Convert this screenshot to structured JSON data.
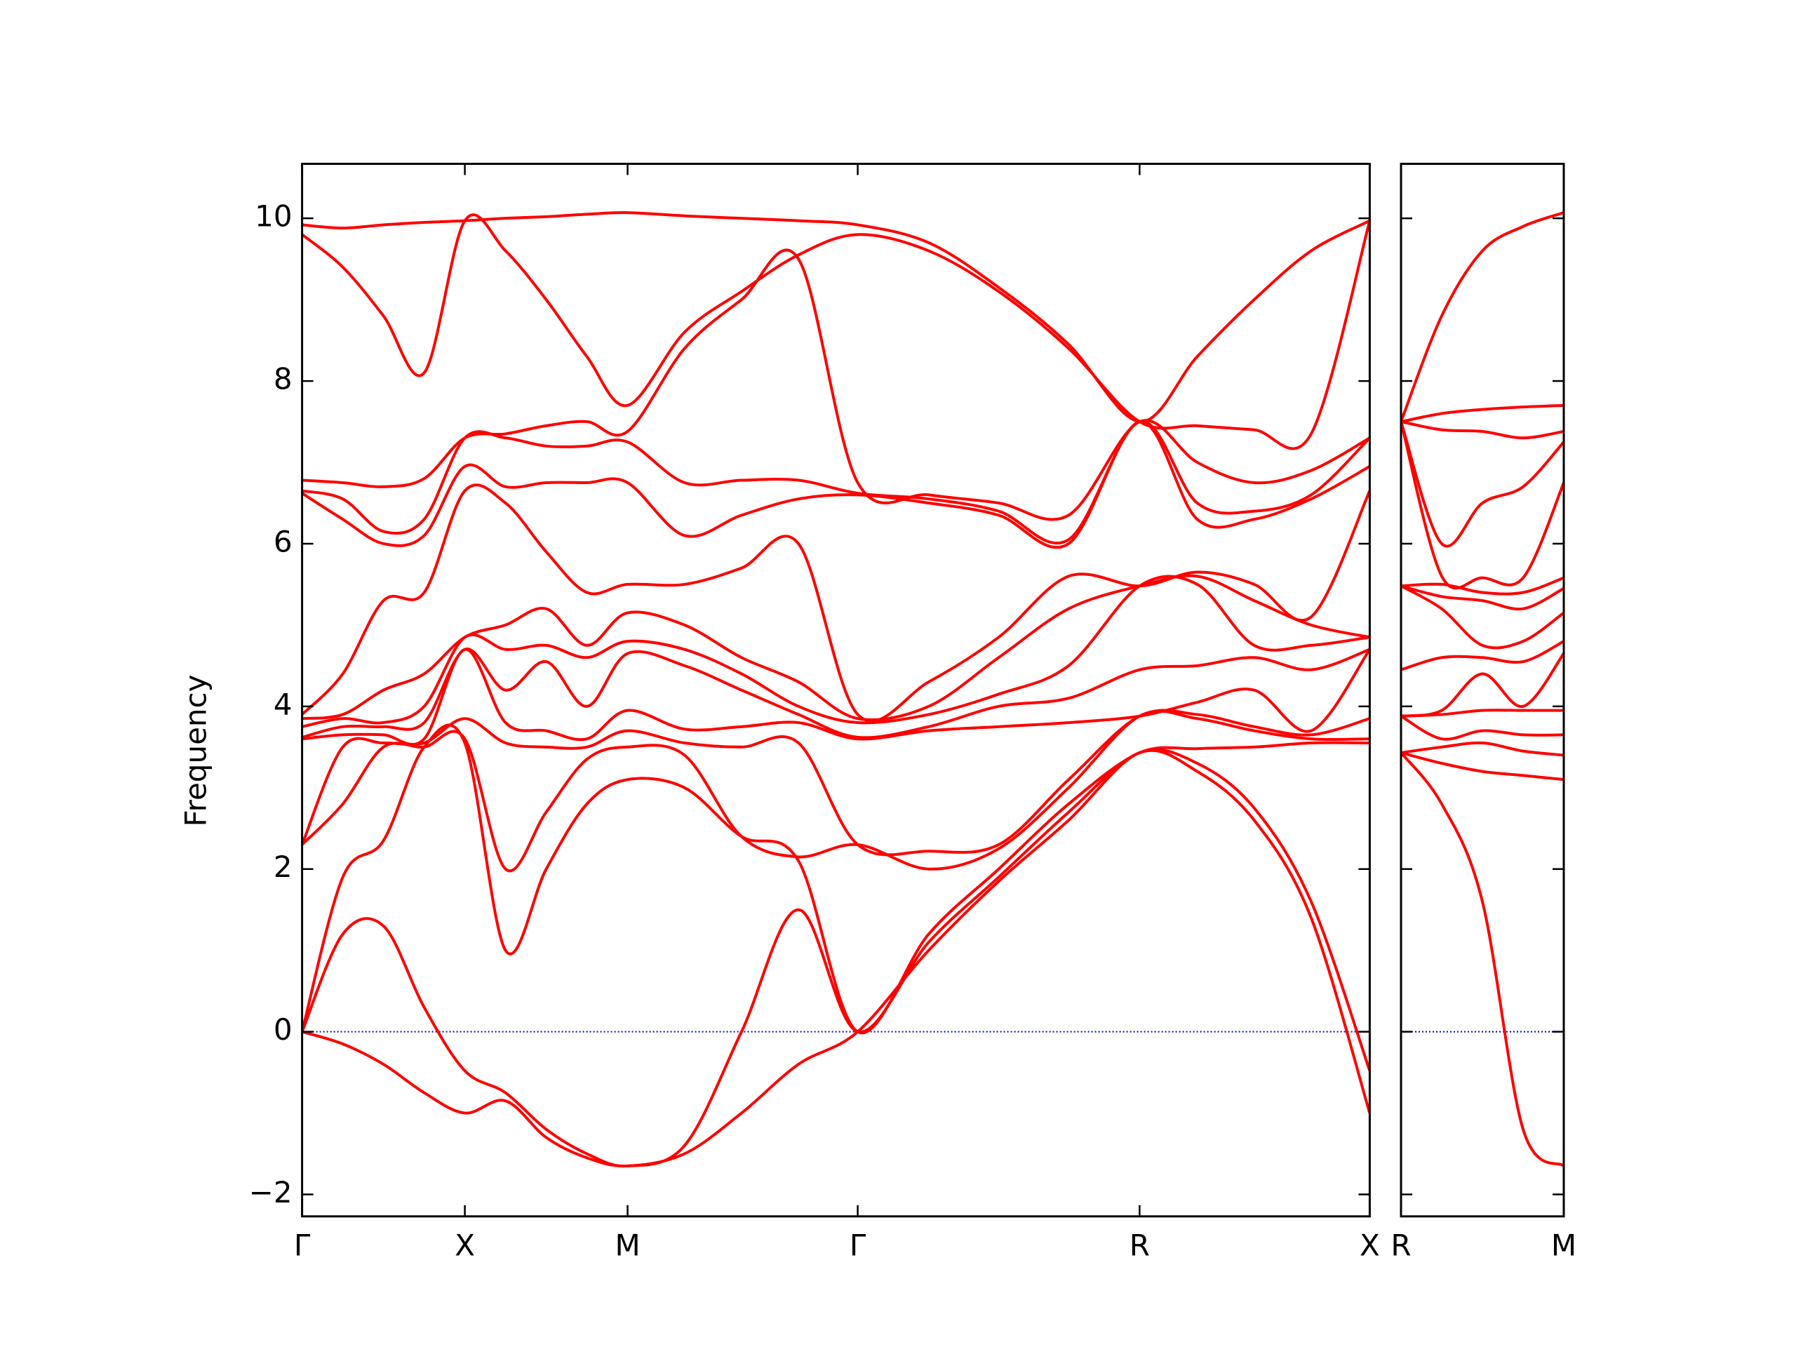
{
  "chart_data": [
    {
      "type": "line",
      "ylabel": "Frequency",
      "color": "#ff0000",
      "reference_line": {
        "value": 0,
        "color": "#0000cc"
      },
      "xlim": [
        0,
        6.56
      ],
      "ylim": [
        -2.27,
        10.67
      ],
      "xticks": [
        {
          "value": 0,
          "label": "Γ"
        },
        {
          "value": 1,
          "label": "X"
        },
        {
          "value": 2,
          "label": "M"
        },
        {
          "value": 3.414,
          "label": "Γ"
        },
        {
          "value": 5.146,
          "label": "R"
        },
        {
          "value": 6.56,
          "label": "X"
        }
      ],
      "yticks": [
        {
          "value": -2,
          "label": "−2"
        },
        0,
        2,
        4,
        6,
        8,
        10
      ],
      "x": [
        0,
        0.25,
        0.5,
        0.75,
        1,
        1.25,
        1.5,
        1.75,
        2,
        2.35,
        2.7,
        3.05,
        3.414,
        3.85,
        4.28,
        4.71,
        5.146,
        5.5,
        5.85,
        6.2,
        6.56
      ],
      "series": [
        {
          "values": [
            0,
            -0.15,
            -0.4,
            -0.75,
            -1.0,
            -0.85,
            -1.3,
            -1.55,
            -1.65,
            -1.5,
            -1.0,
            -0.4,
            0,
            1.0,
            1.85,
            2.6,
            3.43,
            3.2,
            2.6,
            1.4,
            -1.0
          ]
        },
        {
          "values": [
            0,
            1.2,
            1.3,
            0.3,
            -0.48,
            -0.75,
            -1.2,
            -1.5,
            -1.65,
            -1.4,
            0.0,
            1.5,
            0,
            1.1,
            1.9,
            2.7,
            3.43,
            3.3,
            2.75,
            1.6,
            -0.48
          ]
        },
        {
          "values": [
            0,
            1.9,
            2.35,
            3.5,
            3.55,
            1.0,
            2.0,
            2.8,
            3.1,
            3.0,
            2.4,
            2.1,
            0,
            1.2,
            2.0,
            2.8,
            3.43,
            3.48,
            3.5,
            3.55,
            3.55
          ]
        },
        {
          "values": [
            2.3,
            2.8,
            3.5,
            3.5,
            3.6,
            2.0,
            2.7,
            3.35,
            3.5,
            3.4,
            2.4,
            2.15,
            2.3,
            2.0,
            2.25,
            3.0,
            3.88,
            3.85,
            3.7,
            3.6,
            3.6
          ]
        },
        {
          "values": [
            2.3,
            3.5,
            3.55,
            3.55,
            3.85,
            3.55,
            3.5,
            3.5,
            3.7,
            3.55,
            3.5,
            3.55,
            2.3,
            2.22,
            2.3,
            3.1,
            3.88,
            3.9,
            3.75,
            3.65,
            3.85
          ]
        },
        {
          "values": [
            3.6,
            3.65,
            3.65,
            3.6,
            4.7,
            3.8,
            3.7,
            3.6,
            3.95,
            3.72,
            3.75,
            3.8,
            3.6,
            3.7,
            3.75,
            3.8,
            3.88,
            4.05,
            4.2,
            3.7,
            4.7
          ]
        },
        {
          "values": [
            3.62,
            3.75,
            3.75,
            3.8,
            4.7,
            4.2,
            4.55,
            4.0,
            4.65,
            4.5,
            4.2,
            3.9,
            3.62,
            3.75,
            4.0,
            4.1,
            4.45,
            4.5,
            4.6,
            4.45,
            4.7
          ]
        },
        {
          "values": [
            3.75,
            3.85,
            3.8,
            4.0,
            4.85,
            4.7,
            4.75,
            4.6,
            4.8,
            4.7,
            4.4,
            4.0,
            3.8,
            3.9,
            4.15,
            4.5,
            5.48,
            5.5,
            4.75,
            4.75,
            4.85
          ]
        },
        {
          "values": [
            3.85,
            3.9,
            4.2,
            4.4,
            4.85,
            5.0,
            5.2,
            4.75,
            5.15,
            5.0,
            4.6,
            4.3,
            3.85,
            4.0,
            4.6,
            5.2,
            5.48,
            5.6,
            5.3,
            5.0,
            4.85
          ]
        },
        {
          "values": [
            3.9,
            4.4,
            5.3,
            5.4,
            6.65,
            6.5,
            5.9,
            5.4,
            5.5,
            5.5,
            5.7,
            6.0,
            3.9,
            4.3,
            4.85,
            5.6,
            5.48,
            5.65,
            5.5,
            5.1,
            6.65
          ]
        },
        {
          "values": [
            6.62,
            6.3,
            6.0,
            6.1,
            6.95,
            6.7,
            6.75,
            6.75,
            6.75,
            6.1,
            6.35,
            6.55,
            6.6,
            6.5,
            6.35,
            6.0,
            7.5,
            6.3,
            6.3,
            6.55,
            6.95
          ]
        },
        {
          "values": [
            6.65,
            6.55,
            6.15,
            6.3,
            7.3,
            7.3,
            7.2,
            7.2,
            7.25,
            6.75,
            6.78,
            6.78,
            6.62,
            6.55,
            6.4,
            6.05,
            7.5,
            6.5,
            6.4,
            6.6,
            7.3
          ]
        },
        {
          "values": [
            6.78,
            6.75,
            6.7,
            6.8,
            7.3,
            7.35,
            7.45,
            7.5,
            7.38,
            8.4,
            9.0,
            9.5,
            6.75,
            6.6,
            6.5,
            6.35,
            7.5,
            7.0,
            6.75,
            6.9,
            7.3
          ]
        },
        {
          "values": [
            9.8,
            9.4,
            8.8,
            8.1,
            9.97,
            9.6,
            9.0,
            8.3,
            7.7,
            8.6,
            9.1,
            9.55,
            9.8,
            9.6,
            9.1,
            8.4,
            7.5,
            7.45,
            7.4,
            7.35,
            9.97
          ]
        },
        {
          "values": [
            9.92,
            9.88,
            9.92,
            9.95,
            9.97,
            10.0,
            10.02,
            10.05,
            10.07,
            10.03,
            10.0,
            9.97,
            9.92,
            9.7,
            9.15,
            8.45,
            7.5,
            8.3,
            9.0,
            9.6,
            9.97
          ]
        }
      ]
    },
    {
      "type": "line",
      "color": "#ff0000",
      "ytick_labels": false,
      "reference_line": {
        "value": 0,
        "color": "#0000cc"
      },
      "xlim": [
        0,
        1
      ],
      "ylim": [
        -2.27,
        10.67
      ],
      "xticks": [
        {
          "value": 0,
          "label": "R"
        },
        {
          "value": 1,
          "label": "M"
        }
      ],
      "yticks": [
        -2,
        0,
        2,
        4,
        6,
        8,
        10
      ],
      "x": [
        0,
        0.25,
        0.5,
        0.75,
        1
      ],
      "series": [
        {
          "values": [
            3.43,
            2.8,
            1.6,
            -1.2,
            -1.65
          ]
        },
        {
          "values": [
            3.43,
            3.3,
            3.2,
            3.15,
            3.1
          ]
        },
        {
          "values": [
            3.43,
            3.5,
            3.55,
            3.45,
            3.4
          ]
        },
        {
          "values": [
            3.88,
            3.6,
            3.7,
            3.65,
            3.65
          ]
        },
        {
          "values": [
            3.88,
            3.9,
            3.95,
            3.95,
            3.95
          ]
        },
        {
          "values": [
            3.88,
            3.95,
            4.4,
            4.0,
            4.65
          ]
        },
        {
          "values": [
            4.45,
            4.6,
            4.6,
            4.55,
            4.8
          ]
        },
        {
          "values": [
            5.48,
            5.2,
            4.75,
            4.8,
            5.15
          ]
        },
        {
          "values": [
            5.48,
            5.35,
            5.3,
            5.2,
            5.45
          ]
        },
        {
          "values": [
            5.48,
            5.5,
            5.4,
            5.4,
            5.58
          ]
        },
        {
          "values": [
            7.5,
            5.6,
            5.58,
            5.58,
            6.75
          ]
        },
        {
          "values": [
            7.5,
            6.0,
            6.5,
            6.7,
            7.25
          ]
        },
        {
          "values": [
            7.5,
            7.4,
            7.38,
            7.3,
            7.38
          ]
        },
        {
          "values": [
            7.5,
            7.6,
            7.65,
            7.68,
            7.7
          ]
        },
        {
          "values": [
            7.5,
            8.8,
            9.6,
            9.9,
            10.07
          ]
        }
      ]
    }
  ]
}
